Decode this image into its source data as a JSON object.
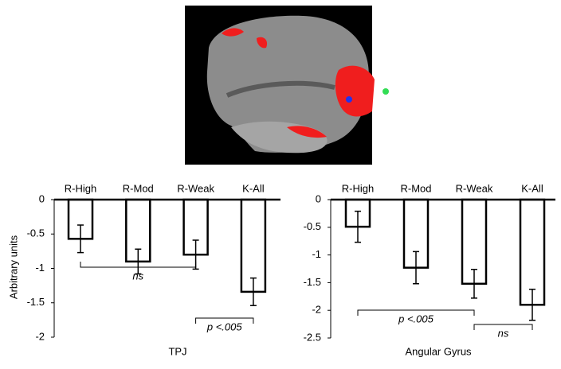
{
  "chart_data": [
    {
      "type": "bar",
      "xlabel": "TPJ",
      "ylabel": "Arbitrary units",
      "categories": [
        "R-High",
        "R-Mod",
        "R-Weak",
        "K-All"
      ],
      "values": [
        -0.57,
        -0.9,
        -0.8,
        -1.34
      ],
      "errors": [
        0.2,
        0.18,
        0.21,
        0.2
      ],
      "color": "#ffffff",
      "ylim": [
        -2,
        0
      ],
      "yticks": [
        0,
        -0.5,
        -1,
        -1.5,
        -2
      ],
      "annotations": [
        "ns",
        "p <.005"
      ]
    },
    {
      "type": "bar",
      "xlabel": "Angular Gyrus",
      "categories": [
        "R-High",
        "R-Mod",
        "R-Weak",
        "K-All"
      ],
      "values": [
        -0.49,
        -1.23,
        -1.52,
        -1.9
      ],
      "errors": [
        0.28,
        0.29,
        0.26,
        0.28
      ],
      "color": "#ffffff",
      "ylim": [
        -2.5,
        0
      ],
      "yticks": [
        0,
        -0.5,
        -1,
        -1.5,
        -2,
        -2.5
      ],
      "annotations": [
        "p <.005",
        "ns"
      ]
    }
  ]
}
